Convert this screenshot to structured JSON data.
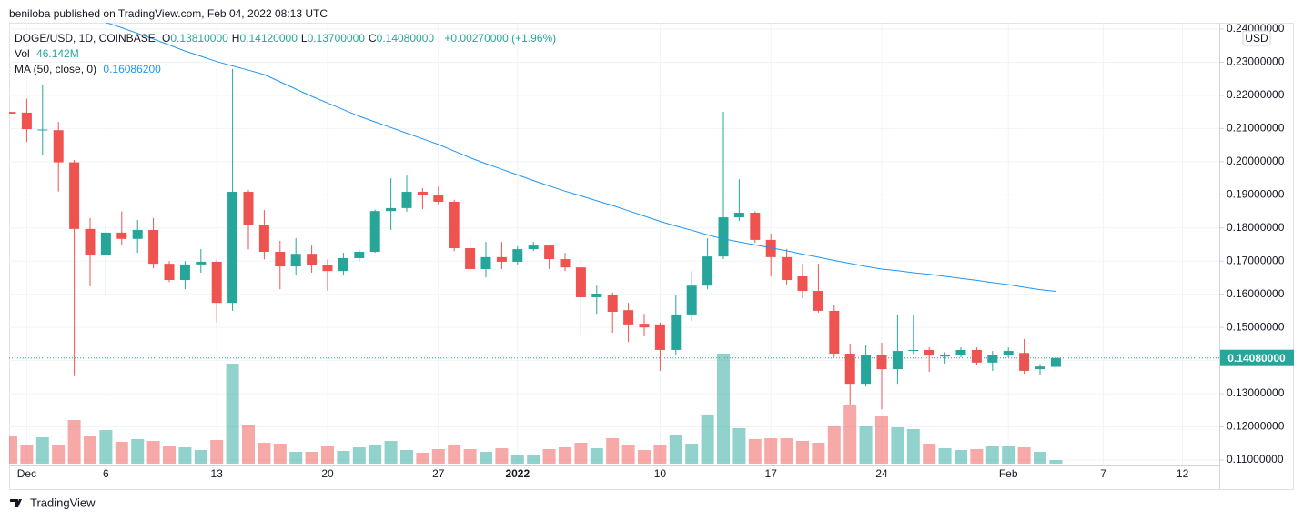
{
  "header": {
    "byline": "beniloba published on TradingView.com, Feb 04, 2022 08:13 UTC"
  },
  "chart_data": {
    "type": "candlestick",
    "categories": [
      null,
      "Dec",
      null,
      null,
      null,
      null,
      "6",
      null,
      null,
      null,
      null,
      null,
      null,
      "13",
      null,
      null,
      null,
      null,
      null,
      null,
      "20",
      null,
      null,
      null,
      null,
      null,
      null,
      "27",
      null,
      null,
      null,
      null,
      "2022",
      null,
      null,
      null,
      null,
      null,
      null,
      null,
      null,
      "10",
      null,
      null,
      null,
      null,
      null,
      null,
      "17",
      null,
      null,
      null,
      null,
      null,
      null,
      "24",
      null,
      null,
      null,
      null,
      null,
      null,
      null,
      "Feb",
      null,
      null,
      null,
      null,
      null,
      "7",
      null,
      null,
      null,
      null,
      "12"
    ],
    "up_color": "#26a69a",
    "down_color": "#ef5350",
    "series": [
      {
        "name": "DOGE/USD, 1D, COINBASE",
        "open": [
          0.215,
          0.2148,
          0.2095,
          0.2095,
          0.1998,
          0.1797,
          0.1717,
          0.1786,
          0.1767,
          0.1794,
          0.1692,
          0.1643,
          0.169,
          0.1698,
          0.1574,
          0.1909,
          0.181,
          0.1728,
          0.1684,
          0.1722,
          0.1687,
          0.167,
          0.1709,
          0.1728,
          0.1851,
          0.186,
          0.1909,
          0.1898,
          0.1879,
          0.1739,
          0.1676,
          0.1712,
          0.1698,
          0.1736,
          0.1747,
          0.1706,
          0.1681,
          0.1591,
          0.1599,
          0.1552,
          0.1511,
          0.1509,
          0.1432,
          0.1539,
          0.1626,
          0.1714,
          0.1832,
          0.1846,
          0.1764,
          0.1712,
          0.1654,
          0.161,
          0.155,
          0.1421,
          0.133,
          0.1418,
          0.1374,
          0.1429,
          0.1432,
          0.1412,
          0.1418,
          0.1432,
          0.1394,
          0.1418,
          0.1423,
          0.1374,
          0.1381,
          null,
          null,
          null,
          null,
          null,
          null,
          null,
          null
        ],
        "high": [
          0.215,
          0.219,
          0.223,
          0.212,
          0.2005,
          0.183,
          0.181,
          0.185,
          0.1824,
          0.183,
          0.17,
          0.17,
          0.1736,
          0.1705,
          0.228,
          0.1915,
          0.1854,
          0.1761,
          0.1769,
          0.1747,
          0.1705,
          0.1725,
          0.1735,
          0.1855,
          0.195,
          0.1958,
          0.192,
          0.1925,
          0.1885,
          0.1769,
          0.1758,
          0.1758,
          0.1745,
          0.1758,
          0.175,
          0.1725,
          0.1705,
          0.1626,
          0.1605,
          0.1574,
          0.1541,
          0.1515,
          0.1599,
          0.167,
          0.1769,
          0.215,
          0.1947,
          0.185,
          0.1783,
          0.1736,
          0.1692,
          0.1692,
          0.1569,
          0.1451,
          0.1446,
          0.1454,
          0.1539,
          0.1536,
          0.144,
          0.1425,
          0.144,
          0.144,
          0.1429,
          0.144,
          0.1465,
          0.139,
          0.1412,
          null,
          null,
          null,
          null,
          null,
          null,
          null,
          null
        ],
        "low": [
          0.2145,
          0.206,
          0.202,
          0.191,
          0.1353,
          0.1624,
          0.16,
          0.1747,
          0.1725,
          0.1678,
          0.1637,
          0.1615,
          0.1665,
          0.1514,
          0.155,
          0.1735,
          0.1705,
          0.1615,
          0.1659,
          0.1665,
          0.161,
          0.1659,
          0.17,
          0.1725,
          0.1794,
          0.1849,
          0.1857,
          0.1868,
          0.173,
          0.1665,
          0.1651,
          0.1676,
          0.169,
          0.173,
          0.1676,
          0.167,
          0.1476,
          0.1541,
          0.1484,
          0.1456,
          0.1473,
          0.1369,
          0.1418,
          0.1519,
          0.1615,
          0.1706,
          0.1821,
          0.1755,
          0.1654,
          0.163,
          0.1588,
          0.1545,
          0.141,
          0.1267,
          0.1322,
          0.1253,
          0.133,
          0.142,
          0.1366,
          0.1391,
          0.141,
          0.1385,
          0.1369,
          0.141,
          0.136,
          0.1355,
          0.137,
          null,
          null,
          null,
          null,
          null,
          null,
          null,
          null
        ],
        "close": [
          0.2145,
          0.2098,
          0.2097,
          0.1998,
          0.1797,
          0.1717,
          0.1786,
          0.1767,
          0.1794,
          0.1692,
          0.1643,
          0.169,
          0.1698,
          0.1574,
          0.1909,
          0.181,
          0.1728,
          0.1684,
          0.1722,
          0.1687,
          0.167,
          0.1709,
          0.1728,
          0.1851,
          0.186,
          0.1909,
          0.1898,
          0.1879,
          0.1739,
          0.1676,
          0.1712,
          0.1698,
          0.1736,
          0.1747,
          0.1706,
          0.1681,
          0.1591,
          0.1602,
          0.1547,
          0.1509,
          0.15,
          0.1432,
          0.1539,
          0.1626,
          0.1714,
          0.1832,
          0.1846,
          0.1764,
          0.1712,
          0.1643,
          0.161,
          0.155,
          0.1421,
          0.133,
          0.1418,
          0.1374,
          0.1429,
          0.1432,
          0.1415,
          0.1418,
          0.1432,
          0.1394,
          0.1418,
          0.1429,
          0.1369,
          0.1382,
          0.1408,
          null,
          null,
          null,
          null,
          null,
          null,
          null,
          null
        ]
      }
    ],
    "legend": {
      "items": [
        {
          "key": "O",
          "text": "0.13810000"
        },
        {
          "key": "H",
          "text": "0.14120000"
        },
        {
          "key": "L",
          "text": "0.13700000"
        },
        {
          "key": "C",
          "text": "0.14080000"
        }
      ],
      "change": "+0.00270000 (+1.96%)"
    },
    "volume": {
      "name": "Vol",
      "last_label": "46.142M",
      "values": [
        345,
        241.5,
        333.5,
        241.5,
        552,
        345,
        425.5,
        276,
        310.5,
        287.5,
        218.5,
        207,
        172.5,
        299,
        1265,
        483,
        264.5,
        253,
        149.5,
        149.5,
        218.5,
        161,
        207,
        241.5,
        287.5,
        172.5,
        138,
        184,
        230,
        184,
        149.5,
        195.5,
        115,
        103.5,
        184,
        207,
        264.5,
        195.5,
        322,
        230,
        172.5,
        241.5,
        356.5,
        253,
        609.5,
        1391.5,
        448.5,
        310.5,
        322,
        322,
        287.5,
        264.5,
        471.5,
        747.5,
        471.5,
        598,
        460,
        437,
        253,
        195.5,
        172.5,
        184,
        218.5,
        218.5,
        207,
        149.5,
        46.142,
        null,
        null,
        null,
        null,
        null,
        null,
        null,
        null
      ]
    },
    "ma": {
      "name": "MA (50, close, 0)",
      "color": "#2196f3",
      "last_label": "0.16086200",
      "values": [
        null,
        null,
        null,
        null,
        null,
        null,
        0.242,
        0.2404,
        0.2387,
        0.237,
        0.2352,
        0.2334,
        0.2318,
        0.2302,
        0.2289,
        0.2276,
        0.2263,
        0.2241,
        0.2219,
        0.2197,
        0.2177,
        0.2157,
        0.2137,
        0.212,
        0.2103,
        0.2086,
        0.2069,
        0.2052,
        0.2032,
        0.2012,
        0.1994,
        0.1977,
        0.196,
        0.1943,
        0.1927,
        0.1911,
        0.1897,
        0.1882,
        0.1868,
        0.1852,
        0.1836,
        0.182,
        0.1806,
        0.1793,
        0.1779,
        0.1767,
        0.1758,
        0.1749,
        0.174,
        0.1731,
        0.1721,
        0.1712,
        0.1702,
        0.1693,
        0.1684,
        0.1676,
        0.1671,
        0.1665,
        0.166,
        0.1654,
        0.1648,
        0.1642,
        0.1635,
        0.1629,
        0.1621,
        0.1614,
        0.160862,
        null,
        null,
        null,
        null,
        null,
        null,
        null,
        null
      ]
    },
    "ylim": [
      0.11,
      0.24
    ],
    "yticks": [
      {
        "value": 0.11,
        "label": "0.11000000"
      },
      {
        "value": 0.12,
        "label": "0.12000000"
      },
      {
        "value": 0.13,
        "label": "0.13000000"
      },
      {
        "value": 0.14,
        "label": "0.14000000"
      },
      {
        "value": 0.15,
        "label": "0.15000000"
      },
      {
        "value": 0.16,
        "label": "0.16000000"
      },
      {
        "value": 0.17,
        "label": "0.17000000"
      },
      {
        "value": 0.18,
        "label": "0.18000000"
      },
      {
        "value": 0.19,
        "label": "0.19000000"
      },
      {
        "value": 0.2,
        "label": "0.20000000"
      },
      {
        "value": 0.21,
        "label": "0.21000000"
      },
      {
        "value": 0.22,
        "label": "0.22000000"
      },
      {
        "value": 0.23,
        "label": "0.23000000"
      },
      {
        "value": 0.24,
        "label": "0.24000000"
      }
    ],
    "price_line": {
      "value": 0.1408,
      "label": "0.14080000"
    },
    "currency": "USD",
    "grid": true
  },
  "footer": {
    "brand": "TradingView"
  }
}
